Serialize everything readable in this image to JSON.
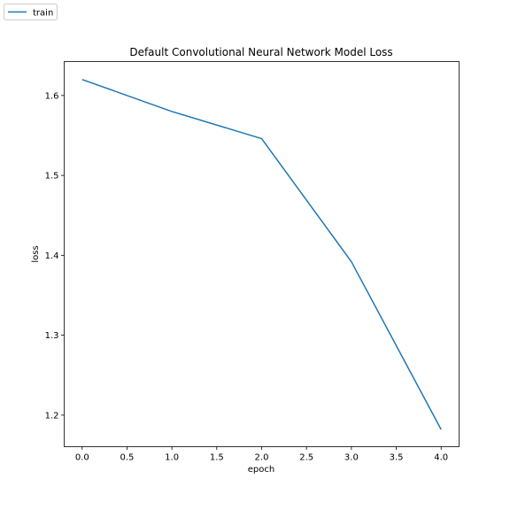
{
  "chart_data": {
    "type": "line",
    "title": "Default Convolutional Neural Network Model Loss",
    "xlabel": "epoch",
    "ylabel": "loss",
    "xlim": [
      -0.2,
      4.2
    ],
    "ylim": [
      1.1605,
      1.6425
    ],
    "x_ticks": [
      0.0,
      0.5,
      1.0,
      1.5,
      2.0,
      2.5,
      3.0,
      3.5,
      4.0
    ],
    "x_tick_labels": [
      "0.0",
      "0.5",
      "1.0",
      "1.5",
      "2.0",
      "2.5",
      "3.0",
      "3.5",
      "4.0"
    ],
    "y_ticks": [
      1.2,
      1.3,
      1.4,
      1.5,
      1.6
    ],
    "y_tick_labels": [
      "1.2",
      "1.3",
      "1.4",
      "1.5",
      "1.6"
    ],
    "grid": false,
    "legend_position": "top-left",
    "series": [
      {
        "name": "train",
        "color": "#1f77b4",
        "x": [
          0,
          1,
          2,
          3,
          4
        ],
        "y": [
          1.62,
          1.58,
          1.546,
          1.392,
          1.182
        ]
      }
    ]
  }
}
